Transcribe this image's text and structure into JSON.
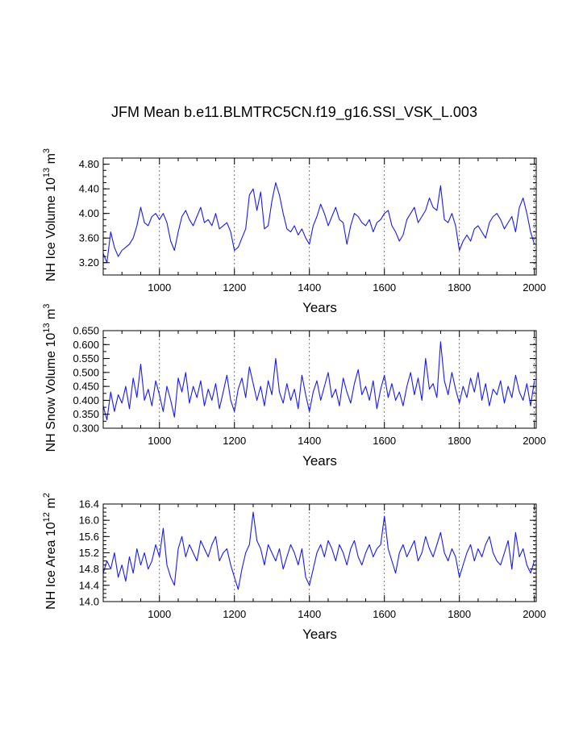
{
  "figure": {
    "title": "JFM Mean b.e11.BLMTRC5CN.f19_g16.SSI_VSK_L.003"
  },
  "chart_data": [
    {
      "type": "line",
      "ylabel": {
        "text": "NH Ice Volume 10",
        "exp1": "13",
        "mid": " m",
        "exp2": "3"
      },
      "xlabel": "Years",
      "xlim": [
        850,
        2005
      ],
      "ylim": [
        3.0,
        4.9
      ],
      "x_ticks": [
        1000,
        1200,
        1400,
        1600,
        1800,
        2000
      ],
      "x_tick_labels": [
        "1000",
        "1200",
        "1400",
        "1600",
        "1800",
        "2000"
      ],
      "y_ticks": [
        3.2,
        3.6,
        4.0,
        4.4,
        4.8
      ],
      "y_tick_labels": [
        "3.20",
        "3.60",
        "4.00",
        "4.40",
        "4.80"
      ],
      "y_minor_step": 0.1,
      "grid_x": [
        1000,
        1200,
        1400,
        1600,
        1800,
        2000
      ],
      "series": [
        {
          "color": "#1818ff",
          "x": [
            850,
            860,
            870,
            880,
            890,
            900,
            910,
            920,
            930,
            940,
            950,
            960,
            970,
            980,
            990,
            1000,
            1010,
            1020,
            1030,
            1040,
            1050,
            1060,
            1070,
            1080,
            1090,
            1100,
            1110,
            1120,
            1130,
            1140,
            1150,
            1160,
            1170,
            1180,
            1190,
            1200,
            1210,
            1220,
            1230,
            1240,
            1250,
            1260,
            1270,
            1280,
            1290,
            1300,
            1310,
            1320,
            1330,
            1340,
            1350,
            1360,
            1370,
            1380,
            1390,
            1400,
            1410,
            1420,
            1430,
            1440,
            1450,
            1460,
            1470,
            1480,
            1490,
            1500,
            1510,
            1520,
            1530,
            1540,
            1550,
            1560,
            1570,
            1580,
            1590,
            1600,
            1610,
            1620,
            1630,
            1640,
            1650,
            1660,
            1670,
            1680,
            1690,
            1700,
            1710,
            1720,
            1730,
            1740,
            1750,
            1760,
            1770,
            1780,
            1790,
            1800,
            1810,
            1820,
            1830,
            1840,
            1850,
            1860,
            1870,
            1880,
            1890,
            1900,
            1910,
            1920,
            1930,
            1940,
            1950,
            1960,
            1970,
            1980,
            1990,
            2000
          ],
          "y": [
            3.35,
            3.2,
            3.7,
            3.45,
            3.3,
            3.4,
            3.45,
            3.5,
            3.6,
            3.8,
            4.1,
            3.85,
            3.8,
            3.95,
            4.0,
            3.9,
            4.0,
            3.85,
            3.55,
            3.4,
            3.7,
            3.95,
            4.05,
            3.9,
            3.8,
            3.95,
            4.1,
            3.85,
            3.9,
            3.8,
            4.0,
            3.75,
            3.8,
            3.85,
            3.7,
            3.4,
            3.45,
            3.6,
            3.75,
            4.3,
            4.4,
            4.05,
            4.35,
            3.75,
            3.8,
            4.2,
            4.5,
            4.3,
            4.0,
            3.75,
            3.7,
            3.8,
            3.65,
            3.75,
            3.6,
            3.5,
            3.8,
            3.95,
            4.15,
            4.0,
            3.8,
            3.95,
            4.1,
            3.9,
            3.85,
            3.5,
            3.8,
            4.0,
            3.95,
            3.85,
            3.8,
            3.9,
            3.7,
            3.85,
            3.9,
            4.0,
            4.05,
            3.8,
            3.7,
            3.55,
            3.65,
            3.9,
            4.0,
            4.1,
            3.85,
            3.95,
            4.05,
            4.25,
            4.1,
            4.05,
            4.45,
            3.9,
            3.85,
            4.0,
            3.8,
            3.4,
            3.55,
            3.65,
            3.55,
            3.75,
            3.8,
            3.7,
            3.6,
            3.85,
            3.95,
            4.0,
            3.9,
            3.75,
            3.85,
            3.95,
            3.7,
            4.1,
            4.25,
            4.0,
            3.7,
            3.5
          ]
        }
      ]
    },
    {
      "type": "line",
      "ylabel": {
        "text": "NH Snow Volume 10",
        "exp1": "13",
        "mid": " m",
        "exp2": "3"
      },
      "xlabel": "Years",
      "xlim": [
        850,
        2005
      ],
      "ylim": [
        0.3,
        0.65
      ],
      "x_ticks": [
        1000,
        1200,
        1400,
        1600,
        1800,
        2000
      ],
      "x_tick_labels": [
        "1000",
        "1200",
        "1400",
        "1600",
        "1800",
        "2000"
      ],
      "y_ticks": [
        0.3,
        0.35,
        0.4,
        0.45,
        0.5,
        0.55,
        0.6,
        0.65
      ],
      "y_tick_labels": [
        "0.300",
        "0.350",
        "0.400",
        "0.450",
        "0.500",
        "0.550",
        "0.600",
        "0.650"
      ],
      "y_minor_step": 0.025,
      "grid_x": [
        1000,
        1200,
        1400,
        1600,
        1800,
        2000
      ],
      "series": [
        {
          "color": "#1818ff",
          "x": [
            850,
            860,
            870,
            880,
            890,
            900,
            910,
            920,
            930,
            940,
            950,
            960,
            970,
            980,
            990,
            1000,
            1010,
            1020,
            1030,
            1040,
            1050,
            1060,
            1070,
            1080,
            1090,
            1100,
            1110,
            1120,
            1130,
            1140,
            1150,
            1160,
            1170,
            1180,
            1190,
            1200,
            1210,
            1220,
            1230,
            1240,
            1250,
            1260,
            1270,
            1280,
            1290,
            1300,
            1310,
            1320,
            1330,
            1340,
            1350,
            1360,
            1370,
            1380,
            1390,
            1400,
            1410,
            1420,
            1430,
            1440,
            1450,
            1460,
            1470,
            1480,
            1490,
            1500,
            1510,
            1520,
            1530,
            1540,
            1550,
            1560,
            1570,
            1580,
            1590,
            1600,
            1610,
            1620,
            1630,
            1640,
            1650,
            1660,
            1670,
            1680,
            1690,
            1700,
            1710,
            1720,
            1730,
            1740,
            1750,
            1760,
            1770,
            1780,
            1790,
            1800,
            1810,
            1820,
            1830,
            1840,
            1850,
            1860,
            1870,
            1880,
            1890,
            1900,
            1910,
            1920,
            1930,
            1940,
            1950,
            1960,
            1970,
            1980,
            1990,
            2000
          ],
          "y": [
            0.38,
            0.33,
            0.43,
            0.36,
            0.42,
            0.39,
            0.45,
            0.37,
            0.48,
            0.41,
            0.53,
            0.4,
            0.44,
            0.38,
            0.47,
            0.42,
            0.36,
            0.45,
            0.4,
            0.34,
            0.48,
            0.43,
            0.5,
            0.39,
            0.45,
            0.41,
            0.47,
            0.38,
            0.44,
            0.4,
            0.46,
            0.37,
            0.43,
            0.49,
            0.4,
            0.36,
            0.44,
            0.48,
            0.41,
            0.52,
            0.46,
            0.4,
            0.45,
            0.38,
            0.47,
            0.42,
            0.55,
            0.43,
            0.39,
            0.46,
            0.4,
            0.44,
            0.37,
            0.49,
            0.42,
            0.36,
            0.43,
            0.47,
            0.4,
            0.45,
            0.5,
            0.41,
            0.44,
            0.38,
            0.48,
            0.43,
            0.39,
            0.46,
            0.51,
            0.42,
            0.45,
            0.4,
            0.47,
            0.37,
            0.44,
            0.49,
            0.41,
            0.46,
            0.4,
            0.43,
            0.38,
            0.45,
            0.5,
            0.42,
            0.48,
            0.4,
            0.55,
            0.44,
            0.46,
            0.41,
            0.61,
            0.47,
            0.42,
            0.5,
            0.44,
            0.39,
            0.45,
            0.41,
            0.48,
            0.43,
            0.5,
            0.4,
            0.46,
            0.38,
            0.44,
            0.42,
            0.47,
            0.39,
            0.45,
            0.41,
            0.49,
            0.43,
            0.4,
            0.46,
            0.38,
            0.47
          ]
        }
      ]
    },
    {
      "type": "line",
      "ylabel": {
        "text": "NH Ice Area 10",
        "exp1": "12",
        "mid": " m",
        "exp2": "2"
      },
      "xlabel": "Years",
      "xlim": [
        850,
        2005
      ],
      "ylim": [
        14.0,
        16.4
      ],
      "x_ticks": [
        1000,
        1200,
        1400,
        1600,
        1800,
        2000
      ],
      "x_tick_labels": [
        "1000",
        "1200",
        "1400",
        "1600",
        "1800",
        "2000"
      ],
      "y_ticks": [
        14.0,
        14.4,
        14.8,
        15.2,
        15.6,
        16.0,
        16.4
      ],
      "y_tick_labels": [
        "14.0",
        "14.4",
        "14.8",
        "15.2",
        "15.6",
        "16.0",
        "16.4"
      ],
      "y_minor_step": 0.1,
      "grid_x": [
        1000,
        1200,
        1400,
        1600,
        1800,
        2000
      ],
      "series": [
        {
          "color": "#1818ff",
          "x": [
            850,
            860,
            870,
            880,
            890,
            900,
            910,
            920,
            930,
            940,
            950,
            960,
            970,
            980,
            990,
            1000,
            1010,
            1020,
            1030,
            1040,
            1050,
            1060,
            1070,
            1080,
            1090,
            1100,
            1110,
            1120,
            1130,
            1140,
            1150,
            1160,
            1170,
            1180,
            1190,
            1200,
            1210,
            1220,
            1230,
            1240,
            1250,
            1260,
            1270,
            1280,
            1290,
            1300,
            1310,
            1320,
            1330,
            1340,
            1350,
            1360,
            1370,
            1380,
            1390,
            1400,
            1410,
            1420,
            1430,
            1440,
            1450,
            1460,
            1470,
            1480,
            1490,
            1500,
            1510,
            1520,
            1530,
            1540,
            1550,
            1560,
            1570,
            1580,
            1590,
            1600,
            1610,
            1620,
            1630,
            1640,
            1650,
            1660,
            1670,
            1680,
            1690,
            1700,
            1710,
            1720,
            1730,
            1740,
            1750,
            1760,
            1770,
            1780,
            1790,
            1800,
            1810,
            1820,
            1830,
            1840,
            1850,
            1860,
            1870,
            1880,
            1890,
            1900,
            1910,
            1920,
            1930,
            1940,
            1950,
            1960,
            1970,
            1980,
            1990,
            2000
          ],
          "y": [
            14.7,
            15.0,
            14.8,
            15.2,
            14.6,
            14.9,
            14.5,
            15.1,
            14.7,
            15.3,
            14.9,
            15.2,
            14.8,
            15.0,
            15.4,
            15.1,
            15.8,
            14.9,
            14.6,
            14.4,
            15.3,
            15.6,
            15.1,
            15.4,
            15.2,
            15.0,
            15.5,
            15.3,
            15.1,
            15.4,
            15.6,
            15.0,
            15.2,
            15.3,
            14.9,
            14.6,
            14.3,
            14.8,
            15.2,
            15.4,
            16.2,
            15.5,
            15.3,
            14.9,
            15.4,
            15.2,
            15.0,
            15.3,
            14.8,
            15.1,
            15.4,
            15.2,
            14.9,
            15.3,
            14.6,
            14.4,
            14.8,
            15.2,
            15.4,
            15.1,
            15.5,
            15.3,
            15.0,
            15.4,
            15.2,
            14.9,
            15.3,
            15.5,
            15.1,
            14.9,
            15.2,
            15.4,
            15.1,
            15.3,
            15.4,
            16.1,
            15.3,
            15.0,
            14.7,
            15.2,
            15.4,
            15.1,
            15.3,
            15.5,
            15.0,
            15.2,
            15.6,
            15.3,
            15.1,
            15.4,
            15.7,
            15.2,
            15.0,
            15.3,
            15.1,
            14.6,
            14.9,
            15.2,
            15.4,
            15.0,
            15.3,
            15.1,
            15.4,
            15.6,
            15.2,
            15.0,
            14.9,
            15.2,
            15.5,
            14.8,
            15.7,
            15.1,
            15.3,
            14.9,
            14.7,
            15.0
          ]
        }
      ]
    }
  ]
}
